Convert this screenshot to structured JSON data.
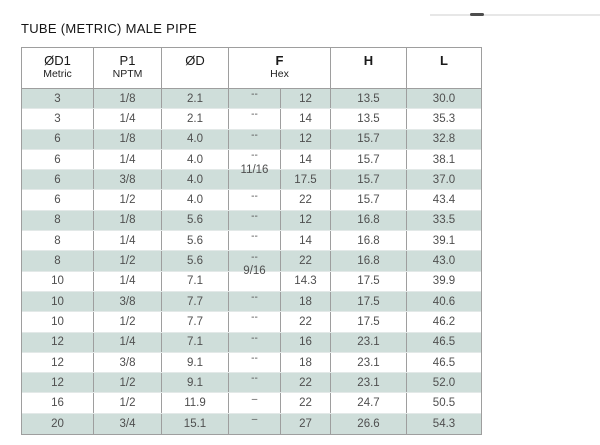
{
  "title": "TUBE (METRIC) MALE PIPE",
  "colors": {
    "row_shade": "#cfdeda",
    "grid_line": "#9e9e9e",
    "row_divider": "#e3e9e8",
    "body_text": "#4f4f4f",
    "header_text": "#1a1a1a"
  },
  "table": {
    "headers": {
      "od1": {
        "line1": "ØD1",
        "line2": "Metric"
      },
      "p1": {
        "line1": "P1",
        "line2": "NPTM"
      },
      "od": {
        "line1": "ØD"
      },
      "f": {
        "line1": "F",
        "line2": "Hex"
      },
      "h": {
        "line1": "H"
      },
      "l": {
        "line1": "L"
      }
    },
    "rows": [
      {
        "d1": "3",
        "p1": "1/8",
        "d": "2.1",
        "f_frac": "--",
        "f_hex": "12",
        "h": "13.5",
        "l": "30.0",
        "shaded": true
      },
      {
        "d1": "3",
        "p1": "1/4",
        "d": "2.1",
        "f_frac": "--",
        "f_hex": "14",
        "h": "13.5",
        "l": "35.3",
        "shaded": false
      },
      {
        "d1": "6",
        "p1": "1/8",
        "d": "4.0",
        "f_frac": "--",
        "f_hex": "12",
        "h": "15.7",
        "l": "32.8",
        "shaded": true
      },
      {
        "d1": "6",
        "p1": "1/4",
        "d": "4.0",
        "f_frac": "--",
        "f_hex": "14",
        "h": "15.7",
        "l": "38.1",
        "shaded": false
      },
      {
        "d1": "6",
        "p1": "3/8",
        "d": "4.0",
        "f_frac": "11/16",
        "f_hex": "17.5",
        "h": "15.7",
        "l": "37.0",
        "shaded": true
      },
      {
        "d1": "6",
        "p1": "1/2",
        "d": "4.0",
        "f_frac": "--",
        "f_hex": "22",
        "h": "15.7",
        "l": "43.4",
        "shaded": false
      },
      {
        "d1": "8",
        "p1": "1/8",
        "d": "5.6",
        "f_frac": "--",
        "f_hex": "12",
        "h": "16.8",
        "l": "33.5",
        "shaded": true
      },
      {
        "d1": "8",
        "p1": "1/4",
        "d": "5.6",
        "f_frac": "--",
        "f_hex": "14",
        "h": "16.8",
        "l": "39.1",
        "shaded": false
      },
      {
        "d1": "8",
        "p1": "1/2",
        "d": "5.6",
        "f_frac": "--",
        "f_hex": "22",
        "h": "16.8",
        "l": "43.0",
        "shaded": true
      },
      {
        "d1": "10",
        "p1": "1/4",
        "d": "7.1",
        "f_frac": "9/16",
        "f_hex": "14.3",
        "h": "17.5",
        "l": "39.9",
        "shaded": false
      },
      {
        "d1": "10",
        "p1": "3/8",
        "d": "7.7",
        "f_frac": "--",
        "f_hex": "18",
        "h": "17.5",
        "l": "40.6",
        "shaded": true
      },
      {
        "d1": "10",
        "p1": "1/2",
        "d": "7.7",
        "f_frac": "--",
        "f_hex": "22",
        "h": "17.5",
        "l": "46.2",
        "shaded": false
      },
      {
        "d1": "12",
        "p1": "1/4",
        "d": "7.1",
        "f_frac": "--",
        "f_hex": "16",
        "h": "23.1",
        "l": "46.5",
        "shaded": true
      },
      {
        "d1": "12",
        "p1": "3/8",
        "d": "9.1",
        "f_frac": "--",
        "f_hex": "18",
        "h": "23.1",
        "l": "46.5",
        "shaded": false
      },
      {
        "d1": "12",
        "p1": "1/2",
        "d": "9.1",
        "f_frac": "--",
        "f_hex": "22",
        "h": "23.1",
        "l": "52.0",
        "shaded": true
      },
      {
        "d1": "16",
        "p1": "1/2",
        "d": "11.9",
        "f_frac": "–",
        "f_hex": "22",
        "h": "24.7",
        "l": "50.5",
        "shaded": false
      },
      {
        "d1": "20",
        "p1": "3/4",
        "d": "15.1",
        "f_frac": "–",
        "f_hex": "27",
        "h": "26.6",
        "l": "54.3",
        "shaded": true
      }
    ]
  }
}
